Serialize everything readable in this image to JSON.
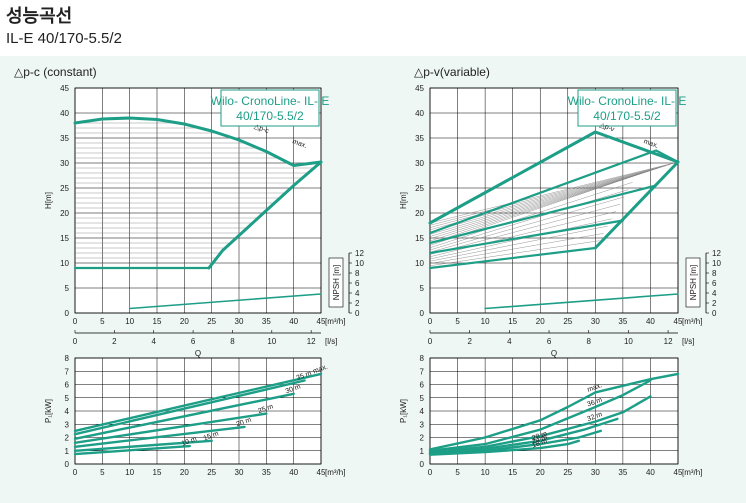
{
  "page": {
    "title": "성능곡선",
    "subtitle": "IL-E 40/170-5.5/2",
    "panel_left_title": "△p-c (constant)",
    "panel_right_title": "△p-v(variable)",
    "model_line1": "Wilo- CronoLine- IL- E",
    "model_line2": "40/170-5.5/2"
  },
  "colors": {
    "curve": "#1d9e87",
    "grid": "#000000",
    "hatch": "#7a7a7a",
    "box_border": "#1d9e87"
  },
  "chart_data": [
    {
      "id": "head-constant",
      "type": "line",
      "title": "△p-c (constant)",
      "xlabel": "[m³/h]",
      "ylabel": "H[m]",
      "x2label": "[l/s]",
      "x3label": "Q",
      "y2label": "NPSH [m]",
      "xlim": [
        0,
        45
      ],
      "ylim": [
        0,
        45
      ],
      "xticks": [
        0,
        5,
        10,
        15,
        20,
        25,
        30,
        35,
        40,
        45
      ],
      "yticks": [
        0,
        5,
        10,
        15,
        20,
        25,
        30,
        35,
        40,
        45
      ],
      "x2ticks": [
        0,
        2,
        4,
        6,
        8,
        10,
        12
      ],
      "y2ticks": [
        0,
        2,
        4,
        6,
        8,
        10,
        12
      ],
      "annotations": [
        "max.",
        "△p-c"
      ],
      "series": [
        {
          "role": "max",
          "x": [
            0,
            5,
            10,
            15,
            20,
            25,
            30,
            35,
            40,
            45
          ],
          "y": [
            38,
            38.8,
            39.0,
            38.7,
            37.8,
            36.4,
            34.6,
            32.3,
            29.5,
            30.2
          ]
        },
        {
          "role": "setpoint",
          "x": [
            0,
            24.5
          ],
          "y": [
            9,
            9
          ]
        },
        {
          "role": "boundary",
          "x": [
            24.5,
            27,
            30,
            35,
            40,
            45
          ],
          "y": [
            9,
            12.5,
            15.5,
            20.5,
            25.5,
            30.2
          ]
        },
        {
          "role": "npsh",
          "x": [
            10,
            45
          ],
          "y": [
            0.9,
            3.8
          ]
        }
      ]
    },
    {
      "id": "head-variable",
      "type": "line",
      "title": "△p-v(variable)",
      "xlabel": "[m³/h]",
      "ylabel": "H[m]",
      "x2label": "[l/s]",
      "x3label": "Q",
      "y2label": "NPSH [m]",
      "xlim": [
        0,
        45
      ],
      "ylim": [
        0,
        45
      ],
      "xticks": [
        0,
        5,
        10,
        15,
        20,
        25,
        30,
        35,
        40,
        45
      ],
      "yticks": [
        0,
        5,
        10,
        15,
        20,
        25,
        30,
        35,
        40,
        45
      ],
      "x2ticks": [
        0,
        2,
        4,
        6,
        8,
        10,
        12
      ],
      "y2ticks": [
        0,
        2,
        4,
        6,
        8,
        10,
        12
      ],
      "annotations": [
        "max.",
        "△p-v"
      ],
      "series": [
        {
          "role": "max",
          "x": [
            0,
            30,
            45
          ],
          "y": [
            18,
            36.2,
            30.2
          ]
        },
        {
          "role": "boundary",
          "x": [
            30,
            45
          ],
          "y": [
            13,
            30.2
          ]
        },
        {
          "role": "line",
          "x": [
            0,
            41,
            45
          ],
          "y": [
            16,
            32.5,
            30.2
          ]
        },
        {
          "role": "line",
          "x": [
            0,
            41
          ],
          "y": [
            14,
            25.5
          ]
        },
        {
          "role": "line",
          "x": [
            0,
            35
          ],
          "y": [
            12,
            18.5
          ]
        },
        {
          "role": "line",
          "x": [
            0,
            30
          ],
          "y": [
            9,
            13
          ]
        },
        {
          "role": "npsh",
          "x": [
            10,
            45
          ],
          "y": [
            0.9,
            3.8
          ]
        }
      ]
    },
    {
      "id": "power-constant",
      "type": "line",
      "xlabel": "[m³/h]",
      "ylabel": "P₁[kW]",
      "xlim": [
        0,
        45
      ],
      "ylim": [
        0,
        8
      ],
      "xticks": [
        0,
        5,
        10,
        15,
        20,
        25,
        30,
        35,
        40,
        45
      ],
      "yticks": [
        0,
        1,
        2,
        3,
        4,
        5,
        6,
        7,
        8
      ],
      "series": [
        {
          "name": "max.",
          "x": [
            0,
            45
          ],
          "y": [
            2.5,
            6.8
          ]
        },
        {
          "name": "35 m",
          "x": [
            0,
            42
          ],
          "y": [
            2.25,
            6.3
          ]
        },
        {
          "name": "30 m",
          "x": [
            0,
            40
          ],
          "y": [
            1.9,
            5.3
          ]
        },
        {
          "name": "25 m",
          "x": [
            0,
            35
          ],
          "y": [
            1.6,
            3.8
          ]
        },
        {
          "name": "20 m",
          "x": [
            0,
            31
          ],
          "y": [
            1.3,
            2.8
          ]
        },
        {
          "name": "15 m",
          "x": [
            0,
            25
          ],
          "y": [
            1.0,
            1.75
          ]
        },
        {
          "name": "10 m",
          "x": [
            0,
            21
          ],
          "y": [
            0.75,
            1.35
          ]
        }
      ]
    },
    {
      "id": "power-variable",
      "type": "line",
      "xlabel": "[m³/h]",
      "ylabel": "P₁[kW]",
      "xlim": [
        0,
        45
      ],
      "ylim": [
        0,
        8
      ],
      "xticks": [
        0,
        5,
        10,
        15,
        20,
        25,
        30,
        35,
        40,
        45
      ],
      "yticks": [
        0,
        1,
        2,
        3,
        4,
        5,
        6,
        7,
        8
      ],
      "series": [
        {
          "name": "max.",
          "x": [
            0,
            10,
            20,
            25,
            30,
            35,
            40,
            45
          ],
          "y": [
            1.1,
            2.0,
            3.3,
            4.3,
            5.4,
            5.9,
            6.4,
            6.8
          ]
        },
        {
          "name": "36 m",
          "x": [
            0,
            10,
            20,
            30,
            35,
            40
          ],
          "y": [
            1.0,
            1.5,
            2.6,
            4.3,
            5.2,
            6.3
          ]
        },
        {
          "name": "32 m",
          "x": [
            0,
            10,
            20,
            30,
            35,
            40
          ],
          "y": [
            0.9,
            1.3,
            2.1,
            3.2,
            3.9,
            5.1
          ]
        },
        {
          "name": "28 m",
          "x": [
            0,
            10,
            20,
            28,
            34
          ],
          "y": [
            0.8,
            1.15,
            1.75,
            2.6,
            3.4
          ]
        },
        {
          "name": "24 m",
          "x": [
            0,
            10,
            20,
            27,
            31
          ],
          "y": [
            0.75,
            1.0,
            1.5,
            2.0,
            2.5
          ]
        },
        {
          "name": "18 m",
          "x": [
            0,
            10,
            20,
            25,
            27
          ],
          "y": [
            0.7,
            0.9,
            1.2,
            1.5,
            1.75
          ]
        }
      ]
    }
  ]
}
